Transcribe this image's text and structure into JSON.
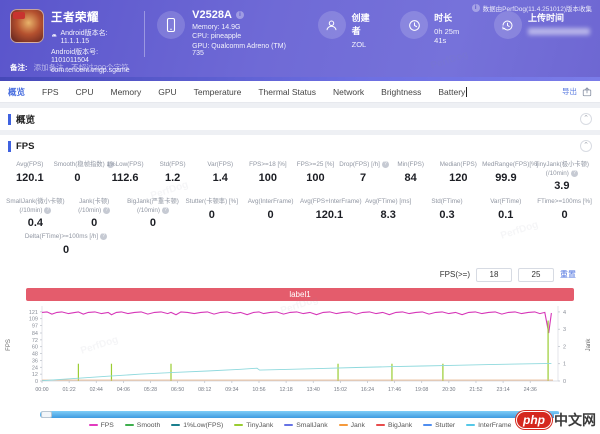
{
  "header": {
    "collect_note": "数据由PerfDog(11.4.251012)版本收集",
    "app": {
      "name": "王者荣耀",
      "version_name": "Android版本名: 11.1.1.15",
      "version_code": "Android版本号: 1101011504",
      "package": "com.tencent.tmgp.sgame"
    },
    "device": {
      "model": "V2528A",
      "memory": "Memory: 14.9G",
      "cpu": "CPU: pineapple",
      "gpu": "GPU: Qualcomm Adreno (TM) 735"
    },
    "creator": {
      "label": "创建者",
      "value": "ZOL"
    },
    "duration": {
      "label": "时长",
      "value": "0h 25m 41s"
    },
    "upload": {
      "label": "上传时间"
    },
    "note": {
      "label": "备注:",
      "placeholder": "添加备注，不超过200个字符"
    }
  },
  "tabs": {
    "items": [
      "概览",
      "FPS",
      "CPU",
      "Memory",
      "GPU",
      "Temperature",
      "Thermal Status",
      "Network",
      "Brightness",
      "Battery"
    ],
    "active": "概览",
    "export_label": "导出"
  },
  "overview_section": {
    "title": "概览"
  },
  "fps_section": {
    "title": "FPS",
    "metrics_row1": [
      {
        "label": "Avg(FPS)",
        "value": "120.1"
      },
      {
        "label": "Smooth(稳帧指数)",
        "info": true,
        "value": "0"
      },
      {
        "label": "1%Low(FPS)",
        "value": "112.6"
      },
      {
        "label": "Std(FPS)",
        "value": "1.2"
      },
      {
        "label": "Var(FPS)",
        "value": "1.4"
      },
      {
        "label": "FPS>=18 [%]",
        "value": "100"
      },
      {
        "label": "FPS>=25 [%]",
        "value": "100"
      },
      {
        "label": "Drop(FPS) [/h]",
        "info": true,
        "value": "7"
      },
      {
        "label": "Min(FPS)",
        "value": "84"
      },
      {
        "label": "Median(FPS)",
        "value": "120"
      },
      {
        "label": "MedRange(FPS)[%]",
        "value": "99.9"
      },
      {
        "label": "TinyJank(极小卡顿)",
        "label2": "(/10min)",
        "info": true,
        "value": "3.9",
        "wide": true
      }
    ],
    "metrics_row2": [
      {
        "label": "SmallJank(微小卡顿)",
        "label2": "(/10min)",
        "info": true,
        "value": "0.4"
      },
      {
        "label": "Jank(卡顿)",
        "label2": "(/10min)",
        "info": true,
        "value": "0"
      },
      {
        "label": "BigJank(严重卡顿)",
        "label2": "(/10min)",
        "info": true,
        "value": "0"
      },
      {
        "label": "Stutter(卡顿率) [%]",
        "value": "0"
      },
      {
        "label": "Avg(InterFrame)",
        "value": "0"
      },
      {
        "label": "Avg(FPS+InterFrame)",
        "value": "120.1"
      },
      {
        "label": "Avg(FTime) [ms]",
        "value": "8.3"
      },
      {
        "label": "Std(FTime)",
        "value": "0.3"
      },
      {
        "label": "Var(FTime)",
        "value": "0.1"
      },
      {
        "label": "FTime>=100ms [%]",
        "value": "0"
      }
    ],
    "metrics_row3": [
      {
        "label": "Delta(FTime)>=100ms [/h]",
        "info": true,
        "value": "0"
      }
    ],
    "threshold": {
      "label": "FPS(>=)",
      "low": "18",
      "high": "25",
      "action": "重置"
    },
    "label_bar": "label1"
  },
  "chart_data": {
    "type": "line",
    "title": "label1",
    "x_axis": {
      "tick_labels": [
        "00:00",
        "01:22",
        "02:44",
        "04:06",
        "05:28",
        "06:50",
        "08:12",
        "09:34",
        "10:56",
        "12:18",
        "13:40",
        "15:02",
        "16:24",
        "17:46",
        "19:08",
        "20:30",
        "21:52",
        "23:14",
        "24:36"
      ],
      "tick_seconds": 82,
      "range_seconds": [
        0,
        1560
      ]
    },
    "y_left": {
      "label": "FPS",
      "ticks": [
        0,
        12,
        24,
        36,
        48,
        60,
        72,
        84,
        97,
        109,
        121
      ],
      "range": [
        0,
        126
      ]
    },
    "y_right": {
      "label": "Jank",
      "ticks": [
        0,
        1,
        2,
        3,
        4
      ],
      "range": [
        0,
        4.17
      ]
    },
    "series": [
      {
        "name": "FPS",
        "color": "#d636b8",
        "axis": "left",
        "style": "line",
        "points": [
          [
            0,
            120
          ],
          [
            15,
            121
          ],
          [
            30,
            117
          ],
          [
            45,
            120
          ],
          [
            60,
            121
          ],
          [
            80,
            118
          ],
          [
            100,
            120
          ],
          [
            110,
            121
          ],
          [
            125,
            117
          ],
          [
            140,
            120
          ],
          [
            160,
            121
          ],
          [
            180,
            118
          ],
          [
            200,
            120
          ],
          [
            210,
            116
          ],
          [
            225,
            120
          ],
          [
            240,
            121
          ],
          [
            260,
            118
          ],
          [
            280,
            120
          ],
          [
            300,
            121
          ],
          [
            320,
            117
          ],
          [
            340,
            120
          ],
          [
            360,
            121
          ],
          [
            380,
            118
          ],
          [
            390,
            120
          ],
          [
            405,
            116
          ],
          [
            420,
            121
          ],
          [
            440,
            120
          ],
          [
            460,
            118
          ],
          [
            480,
            120
          ],
          [
            500,
            121
          ],
          [
            520,
            117
          ],
          [
            540,
            120
          ],
          [
            560,
            121
          ],
          [
            580,
            118
          ],
          [
            600,
            120
          ],
          [
            620,
            116
          ],
          [
            640,
            120
          ],
          [
            656,
            121
          ],
          [
            670,
            118
          ],
          [
            690,
            120
          ],
          [
            710,
            121
          ],
          [
            730,
            117
          ],
          [
            750,
            120
          ],
          [
            770,
            121
          ],
          [
            790,
            118
          ],
          [
            810,
            120
          ],
          [
            830,
            116
          ],
          [
            850,
            120
          ],
          [
            870,
            121
          ],
          [
            890,
            118
          ],
          [
            910,
            120
          ],
          [
            930,
            121
          ],
          [
            950,
            117
          ],
          [
            970,
            120
          ],
          [
            990,
            121
          ],
          [
            1010,
            118
          ],
          [
            1030,
            120
          ],
          [
            1050,
            116
          ],
          [
            1070,
            120
          ],
          [
            1090,
            121
          ],
          [
            1110,
            118
          ],
          [
            1130,
            120
          ],
          [
            1150,
            121
          ],
          [
            1170,
            117
          ],
          [
            1190,
            120
          ],
          [
            1210,
            121
          ],
          [
            1230,
            118
          ],
          [
            1250,
            120
          ],
          [
            1270,
            116
          ],
          [
            1290,
            120
          ],
          [
            1310,
            121
          ],
          [
            1330,
            118
          ],
          [
            1350,
            120
          ],
          [
            1370,
            121
          ],
          [
            1390,
            117
          ],
          [
            1410,
            120
          ],
          [
            1430,
            121
          ],
          [
            1450,
            118
          ],
          [
            1470,
            120
          ],
          [
            1490,
            121
          ],
          [
            1505,
            118
          ],
          [
            1520,
            120
          ],
          [
            1532,
            84
          ],
          [
            1540,
            119
          ]
        ]
      },
      {
        "name": "TinyJank",
        "color": "#9acd32",
        "axis": "right",
        "style": "spike",
        "points": [
          [
            110,
            1
          ],
          [
            210,
            1
          ],
          [
            390,
            1
          ],
          [
            895,
            1
          ],
          [
            1058,
            1
          ],
          [
            1212,
            1
          ],
          [
            1530,
            3.5
          ]
        ]
      },
      {
        "name": "Jank",
        "color": "#e8b48c",
        "axis": "right",
        "style": "line",
        "points": [
          [
            0,
            0.05
          ],
          [
            1545,
            0.05
          ]
        ]
      },
      {
        "name": "InterFrame",
        "color": "#8fd9dd",
        "axis": "right",
        "style": "line",
        "points": [
          [
            0,
            0.02
          ],
          [
            100,
            0.15
          ],
          [
            200,
            0.28
          ],
          [
            300,
            0.4
          ],
          [
            400,
            0.5
          ],
          [
            500,
            0.58
          ],
          [
            600,
            0.68
          ],
          [
            650,
            0.74
          ],
          [
            658,
            0.63
          ],
          [
            750,
            0.68
          ],
          [
            850,
            0.73
          ],
          [
            950,
            0.78
          ],
          [
            1050,
            0.83
          ],
          [
            1150,
            0.87
          ],
          [
            1250,
            0.91
          ],
          [
            1350,
            0.95
          ],
          [
            1450,
            0.99
          ],
          [
            1540,
            1.02
          ]
        ]
      }
    ],
    "legend": [
      {
        "name": "FPS",
        "color": "#e23bbf"
      },
      {
        "name": "Smooth",
        "color": "#3faf4e"
      },
      {
        "name": "1%Low(FPS)",
        "color": "#1a7f8e"
      },
      {
        "name": "TinyJank",
        "color": "#9acd32"
      },
      {
        "name": "SmallJank",
        "color": "#6673e5"
      },
      {
        "name": "Jank",
        "color": "#f59a3d"
      },
      {
        "name": "BigJank",
        "color": "#e84c4c"
      },
      {
        "name": "Stutter",
        "color": "#4f8ef0"
      },
      {
        "name": "InterFrame",
        "color": "#55c8e8"
      }
    ]
  },
  "watermark": {
    "php": "php",
    "cn": "中文网",
    "bg_text": "PerfDog"
  }
}
